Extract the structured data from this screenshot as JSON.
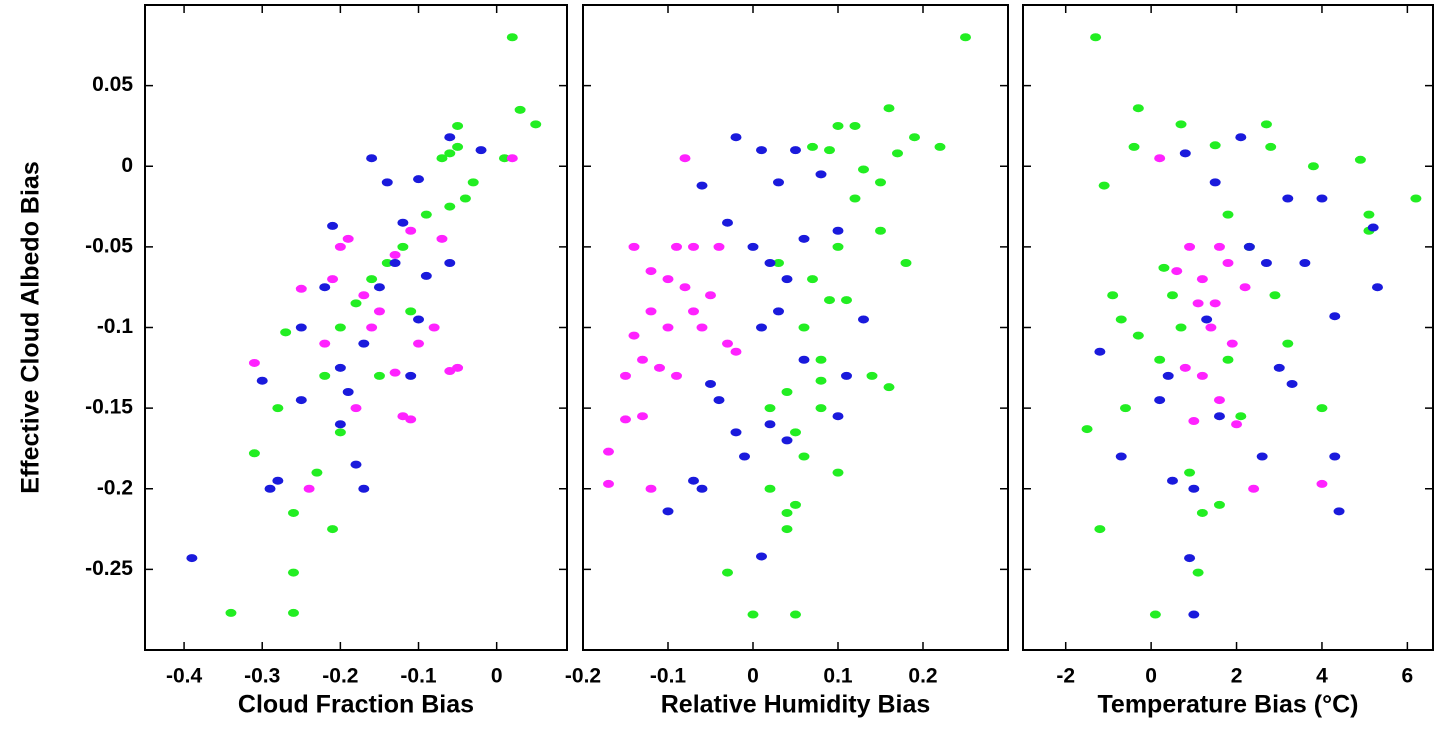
{
  "chart_data": [
    {
      "type": "scatter",
      "x_label": "Cloud Fraction Bias",
      "y_label": "Effective Cloud Albedo Bias",
      "xlim": [
        -0.45,
        0.09
      ],
      "ylim": [
        -0.3,
        0.1
      ],
      "xticks": [
        -0.4,
        -0.3,
        -0.2,
        -0.1,
        0
      ],
      "yticks": [
        -0.25,
        -0.2,
        -0.15,
        -0.1,
        -0.05,
        0,
        0.05
      ],
      "series": [
        {
          "color": "#22ee22",
          "x": [
            0.02,
            0.03,
            0.05,
            0.01,
            -0.05,
            -0.05,
            -0.06,
            -0.07,
            -0.03,
            -0.04,
            -0.06,
            -0.09,
            -0.12,
            -0.14,
            -0.16,
            -0.18,
            -0.11,
            -0.2,
            -0.27,
            -0.22,
            -0.28,
            -0.31,
            -0.2,
            -0.23,
            -0.21,
            -0.26,
            -0.26,
            -0.26,
            -0.34,
            -0.15
          ],
          "values": [
            0.08,
            0.035,
            0.026,
            0.005,
            0.025,
            0.012,
            0.008,
            0.005,
            -0.01,
            -0.02,
            -0.025,
            -0.03,
            -0.05,
            -0.06,
            -0.07,
            -0.085,
            -0.09,
            -0.1,
            -0.103,
            -0.13,
            -0.15,
            -0.178,
            -0.165,
            -0.19,
            -0.225,
            -0.215,
            -0.252,
            -0.277,
            -0.277,
            -0.13
          ]
        },
        {
          "color": "#1a1adc",
          "x": [
            -0.39,
            -0.29,
            -0.28,
            -0.3,
            -0.25,
            -0.25,
            -0.2,
            -0.18,
            -0.17,
            -0.21,
            -0.16,
            -0.14,
            -0.1,
            -0.06,
            -0.02,
            -0.12,
            -0.13,
            -0.15,
            -0.1,
            -0.17,
            -0.2,
            -0.11,
            -0.09,
            -0.06,
            -0.19,
            -0.22
          ],
          "values": [
            -0.243,
            -0.2,
            -0.195,
            -0.133,
            -0.145,
            -0.1,
            -0.16,
            -0.185,
            -0.2,
            -0.037,
            0.005,
            -0.01,
            -0.008,
            0.018,
            0.01,
            -0.035,
            -0.06,
            -0.075,
            -0.095,
            -0.11,
            -0.125,
            -0.13,
            -0.068,
            -0.06,
            -0.14,
            -0.075
          ]
        },
        {
          "color": "#ff22ff",
          "x": [
            -0.31,
            -0.25,
            -0.24,
            -0.19,
            -0.2,
            -0.17,
            -0.15,
            -0.13,
            -0.11,
            -0.07,
            -0.08,
            -0.1,
            -0.13,
            -0.06,
            -0.05,
            -0.12,
            -0.11,
            -0.18,
            -0.22,
            -0.16,
            0.02,
            -0.21
          ],
          "values": [
            -0.122,
            -0.076,
            -0.2,
            -0.045,
            -0.05,
            -0.08,
            -0.09,
            -0.055,
            -0.04,
            -0.045,
            -0.1,
            -0.11,
            -0.128,
            -0.127,
            -0.125,
            -0.155,
            -0.157,
            -0.15,
            -0.11,
            -0.1,
            0.005,
            -0.07
          ]
        }
      ]
    },
    {
      "type": "scatter",
      "x_label": "Relative Humidity Bias",
      "xlim": [
        -0.2,
        0.3
      ],
      "ylim": [
        -0.3,
        0.1
      ],
      "xticks": [
        -0.2,
        -0.1,
        0,
        0.1,
        0.2
      ],
      "series": [
        {
          "color": "#22ee22",
          "x": [
            0.25,
            0.16,
            0.19,
            0.22,
            0.17,
            0.12,
            0.1,
            0.09,
            0.07,
            0.13,
            0.15,
            0.12,
            0.15,
            0.1,
            0.18,
            0.07,
            0.09,
            0.11,
            0.03,
            0.06,
            0.08,
            0.04,
            0.08,
            0.14,
            0.16,
            0.02,
            0.05,
            0.1,
            0.02,
            0.04,
            0.05,
            0.04,
            -0.03,
            0,
            0.05,
            0.06,
            0.08
          ],
          "values": [
            0.08,
            0.036,
            0.018,
            0.012,
            0.008,
            0.025,
            0.025,
            0.01,
            0.012,
            -0.002,
            -0.01,
            -0.02,
            -0.04,
            -0.05,
            -0.06,
            -0.07,
            -0.083,
            -0.083,
            -0.06,
            -0.1,
            -0.12,
            -0.14,
            -0.133,
            -0.13,
            -0.137,
            -0.15,
            -0.165,
            -0.19,
            -0.2,
            -0.215,
            -0.21,
            -0.225,
            -0.252,
            -0.278,
            -0.278,
            -0.18,
            -0.15
          ]
        },
        {
          "color": "#1a1adc",
          "x": [
            -0.02,
            0.01,
            0.03,
            0.05,
            0.08,
            -0.06,
            0,
            -0.03,
            0.02,
            0.04,
            0.06,
            0.1,
            0.13,
            -0.05,
            0.01,
            0.03,
            -0.04,
            -0.02,
            -0.01,
            0.02,
            0.04,
            -0.1,
            -0.07,
            -0.06,
            0.01,
            0.1,
            0.11,
            0.06
          ],
          "values": [
            0.018,
            0.01,
            -0.01,
            0.01,
            -0.005,
            -0.012,
            -0.05,
            -0.035,
            -0.06,
            -0.07,
            -0.045,
            -0.04,
            -0.095,
            -0.135,
            -0.1,
            -0.09,
            -0.145,
            -0.165,
            -0.18,
            -0.16,
            -0.17,
            -0.214,
            -0.195,
            -0.2,
            -0.242,
            -0.155,
            -0.13,
            -0.12
          ]
        },
        {
          "color": "#ff22ff",
          "x": [
            -0.08,
            -0.14,
            -0.12,
            -0.1,
            -0.09,
            -0.07,
            -0.04,
            -0.12,
            -0.1,
            -0.14,
            -0.13,
            -0.11,
            -0.09,
            -0.15,
            -0.08,
            -0.06,
            -0.02,
            -0.15,
            -0.13,
            -0.17,
            -0.17,
            -0.12,
            -0.07,
            -0.05,
            -0.03
          ],
          "values": [
            0.005,
            -0.05,
            -0.065,
            -0.07,
            -0.05,
            -0.05,
            -0.05,
            -0.09,
            -0.1,
            -0.105,
            -0.12,
            -0.125,
            -0.13,
            -0.13,
            -0.075,
            -0.1,
            -0.115,
            -0.157,
            -0.155,
            -0.177,
            -0.197,
            -0.2,
            -0.09,
            -0.08,
            -0.11
          ]
        }
      ]
    },
    {
      "type": "scatter",
      "x_label": "Temperature Bias (°C)",
      "xlim": [
        -3,
        6.6
      ],
      "ylim": [
        -0.3,
        0.1
      ],
      "xticks": [
        -2,
        0,
        2,
        4,
        6
      ],
      "series": [
        {
          "color": "#22ee22",
          "x": [
            -1.3,
            -1.1,
            -0.3,
            0.7,
            -0.4,
            1.5,
            2.7,
            2.8,
            3.8,
            4.9,
            6.2,
            5.1,
            5.1,
            -0.9,
            -0.7,
            0.3,
            1.8,
            2.3,
            -0.3,
            -1.5,
            -0.6,
            0.2,
            0.7,
            1.8,
            2.1,
            3.2,
            4,
            -1.2,
            1.1,
            0.1,
            1.6,
            1.2,
            0.9,
            0.5,
            2.9
          ],
          "values": [
            0.08,
            -0.012,
            0.036,
            0.026,
            0.012,
            0.013,
            0.026,
            0.012,
            0,
            0.004,
            -0.02,
            -0.03,
            -0.04,
            -0.08,
            -0.095,
            -0.063,
            -0.03,
            -0.05,
            -0.105,
            -0.163,
            -0.15,
            -0.12,
            -0.1,
            -0.12,
            -0.155,
            -0.11,
            -0.15,
            -0.225,
            -0.252,
            -0.278,
            -0.21,
            -0.215,
            -0.19,
            -0.08,
            -0.08
          ]
        },
        {
          "color": "#1a1adc",
          "x": [
            0.8,
            2.1,
            1.5,
            3.2,
            4,
            5.2,
            5.3,
            4.3,
            -1.2,
            -0.7,
            0.2,
            0.5,
            1,
            0.9,
            1,
            2.3,
            2.7,
            3.6,
            1.6,
            2.6,
            4.4,
            4.3,
            3,
            3.3,
            1.3,
            0.4
          ],
          "values": [
            0.008,
            0.018,
            -0.01,
            -0.02,
            -0.02,
            -0.038,
            -0.075,
            -0.093,
            -0.115,
            -0.18,
            -0.145,
            -0.195,
            -0.2,
            -0.243,
            -0.278,
            -0.05,
            -0.06,
            -0.06,
            -0.155,
            -0.18,
            -0.214,
            -0.18,
            -0.125,
            -0.135,
            -0.095,
            -0.13
          ]
        },
        {
          "color": "#ff22ff",
          "x": [
            0.2,
            0.9,
            1.2,
            1.6,
            1.8,
            1.1,
            1.4,
            0.8,
            1.2,
            1.9,
            2.2,
            1.6,
            2,
            1,
            2.4,
            4,
            0.6,
            1.5
          ],
          "values": [
            0.005,
            -0.05,
            -0.07,
            -0.05,
            -0.06,
            -0.085,
            -0.1,
            -0.125,
            -0.13,
            -0.11,
            -0.075,
            -0.145,
            -0.16,
            -0.158,
            -0.2,
            -0.197,
            -0.065,
            -0.085
          ]
        }
      ]
    }
  ]
}
